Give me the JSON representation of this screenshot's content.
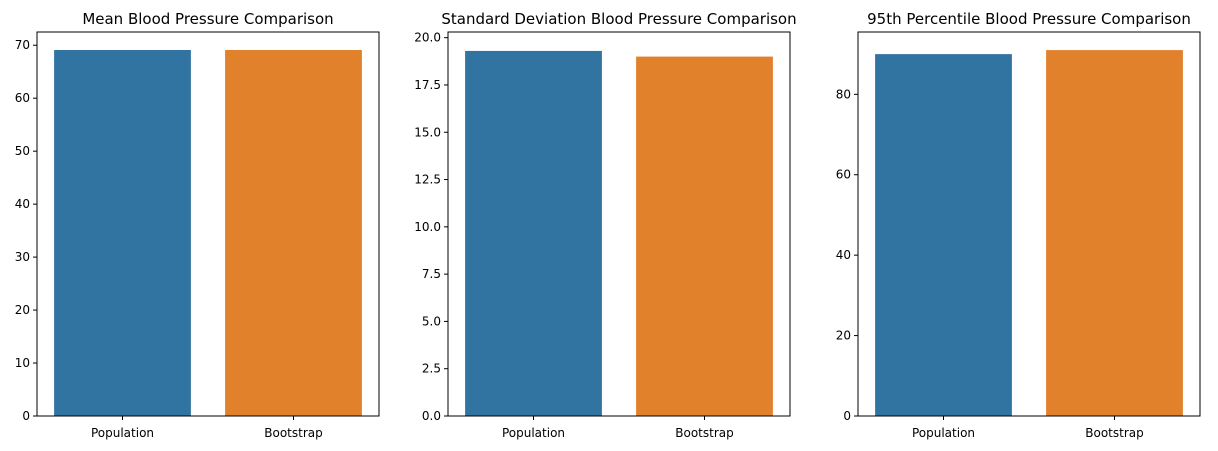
{
  "chart_data": [
    {
      "type": "bar",
      "title": "Mean Blood Pressure Comparison",
      "categories": [
        "Population",
        "Bootstrap"
      ],
      "values": [
        69.1,
        69.1
      ],
      "colors": [
        "#3274a1",
        "#e1812c"
      ],
      "xlabel": "",
      "ylabel": "",
      "ylim": [
        0,
        72.5
      ],
      "yticks": [
        0,
        10,
        20,
        30,
        40,
        50,
        60,
        70
      ],
      "ytick_labels": [
        "0",
        "10",
        "20",
        "30",
        "40",
        "50",
        "60",
        "70"
      ],
      "grid": false
    },
    {
      "type": "bar",
      "title": "Standard Deviation Blood Pressure Comparison",
      "categories": [
        "Population",
        "Bootstrap"
      ],
      "values": [
        19.3,
        19.0
      ],
      "colors": [
        "#3274a1",
        "#e1812c"
      ],
      "xlabel": "",
      "ylabel": "",
      "ylim": [
        0,
        20.3
      ],
      "yticks": [
        0,
        2.5,
        5,
        7.5,
        10,
        12.5,
        15,
        17.5,
        20
      ],
      "ytick_labels": [
        "0.0",
        "2.5",
        "5.0",
        "7.5",
        "10.0",
        "12.5",
        "15.0",
        "17.5",
        "20.0"
      ],
      "grid": false
    },
    {
      "type": "bar",
      "title": "95th Percentile Blood Pressure Comparison",
      "categories": [
        "Population",
        "Bootstrap"
      ],
      "values": [
        90,
        91
      ],
      "colors": [
        "#3274a1",
        "#e1812c"
      ],
      "xlabel": "",
      "ylabel": "",
      "ylim": [
        0,
        95.5
      ],
      "yticks": [
        0,
        20,
        40,
        60,
        80
      ],
      "ytick_labels": [
        "0",
        "20",
        "40",
        "60",
        "80"
      ],
      "grid": false
    }
  ]
}
